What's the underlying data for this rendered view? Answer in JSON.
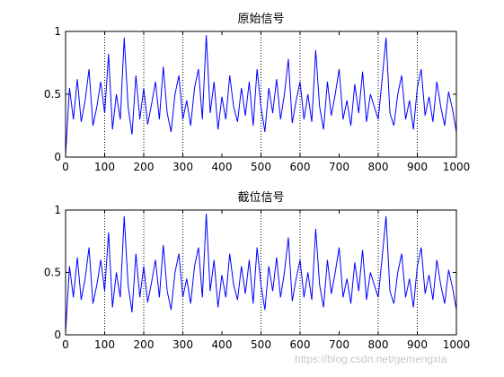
{
  "chart_data": [
    {
      "type": "line",
      "title": "原始信号",
      "xlabel": "",
      "ylabel": "",
      "xlim": [
        0,
        1000
      ],
      "ylim": [
        0,
        1
      ],
      "xticks": [
        0,
        100,
        200,
        300,
        400,
        500,
        600,
        700,
        800,
        900,
        1000
      ],
      "yticks": [
        0,
        0.5,
        1
      ],
      "xtick_labels": [
        "0",
        "100",
        "200",
        "300",
        "400",
        "500",
        "600",
        "700",
        "800",
        "900",
        "1000"
      ],
      "ytick_labels": [
        "0",
        "0.5",
        "1"
      ],
      "grid": false,
      "dotted_markers_x": [
        100,
        200,
        300,
        500,
        600,
        800,
        900
      ],
      "series": [
        {
          "color": "#0000ff",
          "x": [
            0,
            10,
            20,
            30,
            40,
            50,
            60,
            70,
            80,
            90,
            100,
            110,
            120,
            130,
            140,
            150,
            160,
            170,
            180,
            190,
            200,
            210,
            220,
            230,
            240,
            250,
            260,
            270,
            280,
            290,
            300,
            310,
            320,
            330,
            340,
            350,
            360,
            370,
            380,
            390,
            400,
            410,
            420,
            430,
            440,
            450,
            460,
            470,
            480,
            490,
            500,
            510,
            520,
            530,
            540,
            550,
            560,
            570,
            580,
            590,
            600,
            610,
            620,
            630,
            640,
            650,
            660,
            670,
            680,
            690,
            700,
            710,
            720,
            730,
            740,
            750,
            760,
            770,
            780,
            790,
            800,
            810,
            820,
            830,
            840,
            850,
            860,
            870,
            880,
            890,
            900,
            910,
            920,
            930,
            940,
            950,
            960,
            970,
            980,
            990,
            1000
          ],
          "y": [
            0.02,
            0.55,
            0.3,
            0.62,
            0.28,
            0.45,
            0.7,
            0.25,
            0.4,
            0.6,
            0.35,
            0.82,
            0.22,
            0.5,
            0.3,
            0.95,
            0.4,
            0.18,
            0.65,
            0.3,
            0.55,
            0.26,
            0.42,
            0.6,
            0.3,
            0.72,
            0.35,
            0.2,
            0.5,
            0.65,
            0.3,
            0.45,
            0.25,
            0.55,
            0.7,
            0.3,
            0.97,
            0.35,
            0.6,
            0.22,
            0.48,
            0.3,
            0.65,
            0.4,
            0.28,
            0.55,
            0.33,
            0.6,
            0.25,
            0.7,
            0.4,
            0.2,
            0.55,
            0.35,
            0.62,
            0.3,
            0.5,
            0.78,
            0.27,
            0.45,
            0.6,
            0.3,
            0.5,
            0.28,
            0.85,
            0.4,
            0.22,
            0.6,
            0.33,
            0.5,
            0.7,
            0.3,
            0.45,
            0.25,
            0.58,
            0.35,
            0.68,
            0.28,
            0.5,
            0.4,
            0.3,
            0.62,
            0.95,
            0.35,
            0.25,
            0.5,
            0.65,
            0.3,
            0.45,
            0.22,
            0.55,
            0.7,
            0.33,
            0.48,
            0.28,
            0.6,
            0.4,
            0.25,
            0.52,
            0.38,
            0.2
          ]
        }
      ]
    },
    {
      "type": "line",
      "title": "截位信号",
      "xlabel": "",
      "ylabel": "",
      "xlim": [
        0,
        1000
      ],
      "ylim": [
        0,
        1
      ],
      "xticks": [
        0,
        100,
        200,
        300,
        400,
        500,
        600,
        700,
        800,
        900,
        1000
      ],
      "yticks": [
        0,
        0.5,
        1
      ],
      "xtick_labels": [
        "0",
        "100",
        "200",
        "300",
        "400",
        "500",
        "600",
        "700",
        "800",
        "900",
        "1000"
      ],
      "ytick_labels": [
        "0",
        "0.5",
        "1"
      ],
      "grid": false,
      "dotted_markers_x": [
        100,
        200,
        300,
        500,
        600,
        800,
        900
      ],
      "series": [
        {
          "color": "#0000ff",
          "x": [
            0,
            10,
            20,
            30,
            40,
            50,
            60,
            70,
            80,
            90,
            100,
            110,
            120,
            130,
            140,
            150,
            160,
            170,
            180,
            190,
            200,
            210,
            220,
            230,
            240,
            250,
            260,
            270,
            280,
            290,
            300,
            310,
            320,
            330,
            340,
            350,
            360,
            370,
            380,
            390,
            400,
            410,
            420,
            430,
            440,
            450,
            460,
            470,
            480,
            490,
            500,
            510,
            520,
            530,
            540,
            550,
            560,
            570,
            580,
            590,
            600,
            610,
            620,
            630,
            640,
            650,
            660,
            670,
            680,
            690,
            700,
            710,
            720,
            730,
            740,
            750,
            760,
            770,
            780,
            790,
            800,
            810,
            820,
            830,
            840,
            850,
            860,
            870,
            880,
            890,
            900,
            910,
            920,
            930,
            940,
            950,
            960,
            970,
            980,
            990,
            1000
          ],
          "y": [
            0.02,
            0.55,
            0.3,
            0.62,
            0.28,
            0.45,
            0.7,
            0.25,
            0.4,
            0.6,
            0.35,
            0.82,
            0.22,
            0.5,
            0.3,
            0.95,
            0.4,
            0.18,
            0.65,
            0.3,
            0.55,
            0.26,
            0.42,
            0.6,
            0.3,
            0.72,
            0.35,
            0.2,
            0.5,
            0.65,
            0.3,
            0.45,
            0.25,
            0.55,
            0.7,
            0.3,
            0.97,
            0.35,
            0.6,
            0.22,
            0.48,
            0.3,
            0.65,
            0.4,
            0.28,
            0.55,
            0.33,
            0.6,
            0.25,
            0.7,
            0.4,
            0.2,
            0.55,
            0.35,
            0.62,
            0.3,
            0.5,
            0.78,
            0.27,
            0.45,
            0.6,
            0.3,
            0.5,
            0.28,
            0.85,
            0.4,
            0.22,
            0.6,
            0.33,
            0.5,
            0.7,
            0.3,
            0.45,
            0.25,
            0.58,
            0.35,
            0.68,
            0.28,
            0.5,
            0.4,
            0.3,
            0.62,
            0.95,
            0.35,
            0.25,
            0.5,
            0.65,
            0.3,
            0.45,
            0.22,
            0.55,
            0.7,
            0.33,
            0.48,
            0.28,
            0.6,
            0.4,
            0.25,
            0.52,
            0.38,
            0.2
          ]
        }
      ]
    }
  ],
  "watermark": "https://blog.csdn.net/gemengxia"
}
